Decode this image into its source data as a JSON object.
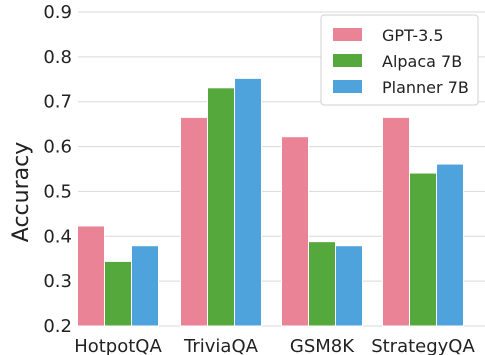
{
  "chart_data": {
    "type": "bar",
    "title": "",
    "xlabel": "",
    "ylabel": "Accuracy",
    "ylim": [
      0.2,
      0.9
    ],
    "yticks": [
      "0.2",
      "0.3",
      "0.4",
      "0.5",
      "0.6",
      "0.7",
      "0.8",
      "0.9"
    ],
    "grid": "horizontal",
    "legend_position": "top-right",
    "categories": [
      "HotpotQA",
      "TriviaQA",
      "GSM8K",
      "StrategyQA"
    ],
    "series": [
      {
        "name": "GPT-3.5",
        "color": "#e98395",
        "values": [
          0.423,
          0.665,
          0.622,
          0.665
        ]
      },
      {
        "name": "Alpaca 7B",
        "color": "#55a83c",
        "values": [
          0.344,
          0.731,
          0.388,
          0.541
        ]
      },
      {
        "name": "Planner 7B",
        "color": "#4fa3dc",
        "values": [
          0.379,
          0.752,
          0.379,
          0.561
        ]
      }
    ]
  }
}
